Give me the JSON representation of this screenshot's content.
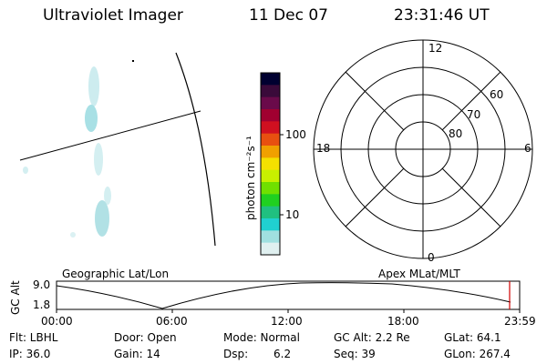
{
  "header": {
    "instrument": "Ultraviolet Imager",
    "date": "11 Dec 07",
    "time": "23:31:46 UT"
  },
  "colorbar": {
    "label": "photon cm⁻²s⁻¹",
    "ticks": [
      "100",
      "10"
    ],
    "colors": [
      "#000030",
      "#3a0a3a",
      "#6a0a4a",
      "#a00030",
      "#d01020",
      "#e85010",
      "#f0a000",
      "#f4e000",
      "#c8f000",
      "#70e000",
      "#20d020",
      "#20c080",
      "#20d0d0",
      "#a0e0e0",
      "#e0f0f0"
    ]
  },
  "polar_plot": {
    "mlt_labels": [
      "12",
      "18",
      "6",
      "0"
    ],
    "lat_labels": [
      "60",
      "70",
      "80"
    ]
  },
  "timeline": {
    "left_label": "Geographic Lat/Lon",
    "right_label": "Apex MLat/MLT",
    "axis_title": "GC Alt",
    "y_ticks": [
      "9.0",
      "1.8"
    ],
    "x_ticks": [
      "00:00",
      "06:00",
      "12:00",
      "18:00",
      "23:59"
    ]
  },
  "info": {
    "filter": "Flt: LBHL",
    "ip": "IP: 36.0",
    "door": "Door: Open",
    "gain": "Gain: 14",
    "mode": "Mode: Normal",
    "dsp_label": "Dsp:",
    "dsp_value": "6.2",
    "gc_alt": "GC Alt: 2.2 Re",
    "seq": "Seq: 39",
    "glat": "GLat:  64.1",
    "glon": "GLon: 267.4"
  }
}
